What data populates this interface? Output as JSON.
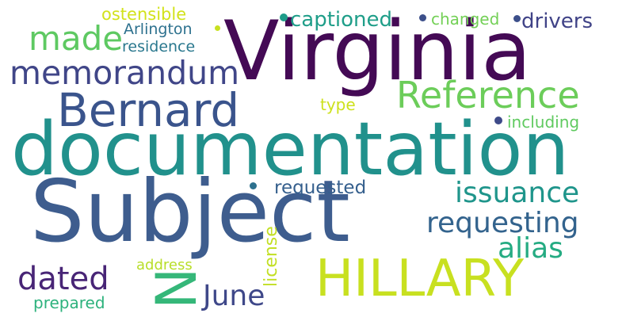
{
  "words": [
    {
      "text": "Subject",
      "color": "#3e5d8e"
    },
    {
      "text": "documentation",
      "color": "#21918c"
    },
    {
      "text": "Virginia",
      "color": "#440a55"
    },
    {
      "text": "Bernard",
      "color": "#3a548c"
    },
    {
      "text": "HILLARY",
      "color": "#c8e020"
    },
    {
      "text": "Reference",
      "color": "#6ccd5a"
    },
    {
      "text": "memorandum",
      "color": "#404688"
    },
    {
      "text": "made",
      "color": "#5ec962"
    },
    {
      "text": "N",
      "color": "#35b779"
    },
    {
      "text": "issuance",
      "color": "#1f958b"
    },
    {
      "text": "requesting",
      "color": "#33638d"
    },
    {
      "text": "alias",
      "color": "#25ab82"
    },
    {
      "text": "dated",
      "color": "#482576"
    },
    {
      "text": "June",
      "color": "#3f4889"
    },
    {
      "text": "captioned",
      "color": "#1f9e89"
    },
    {
      "text": "drivers",
      "color": "#404387"
    },
    {
      "text": "changed",
      "color": "#73d056"
    },
    {
      "text": "ostensible",
      "color": "#d2e21b"
    },
    {
      "text": "Arlington",
      "color": "#2d718e"
    },
    {
      "text": "residence",
      "color": "#2a788e"
    },
    {
      "text": "type",
      "color": "#cde11d"
    },
    {
      "text": "including",
      "color": "#60ca60"
    },
    {
      "text": "requested",
      "color": "#355f8d"
    },
    {
      "text": "license",
      "color": "#c2df23"
    },
    {
      "text": "address",
      "color": "#b8de29"
    },
    {
      "text": "prepared",
      "color": "#2db27d"
    }
  ],
  "dots": [
    {
      "color": "#1e9c89"
    },
    {
      "color": "#3c4f8a"
    },
    {
      "color": "#3c4f8a"
    },
    {
      "color": "#2d718e"
    },
    {
      "color": "#3e4a89"
    },
    {
      "color": "#c8e020"
    }
  ]
}
